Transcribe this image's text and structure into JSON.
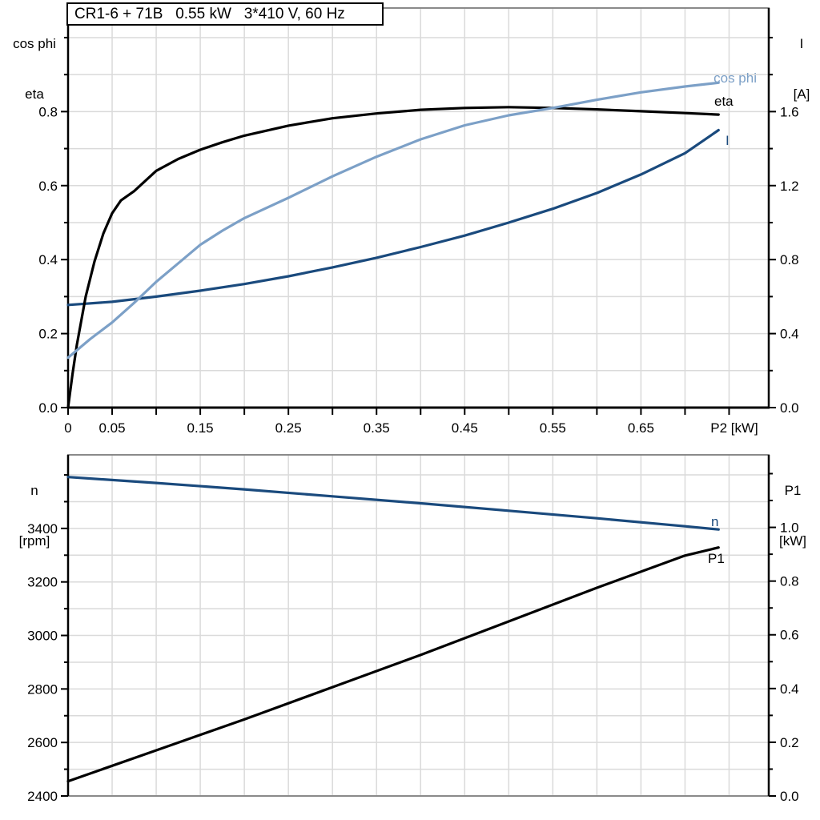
{
  "title": "CR1-6 + 71B   0.55 kW   3*410 V, 60 Hz",
  "colors": {
    "curve_black": "#000000",
    "light_blue": "#7CA0C7",
    "dark_blue": "#1A4A7D",
    "grid": "#DADADA",
    "frame": "#8A8A8A",
    "axis": "#000000",
    "bg": "#FFFFFF"
  },
  "corner_labels": {
    "top_left": {
      "line1": "cos phi",
      "line2": "eta"
    },
    "top_right": {
      "line1": "I",
      "line2": "[A]"
    },
    "bottom_left": {
      "line1": "n",
      "line2": "[rpm]"
    },
    "bottom_right": {
      "line1": "P1",
      "line2": "[kW]"
    }
  },
  "chart_data": [
    {
      "type": "line",
      "name": "motor-efficiency-current-chart",
      "x": {
        "label": "P2 [kW]",
        "range": [
          0,
          0.795
        ],
        "ticks": [
          {
            "v": 0,
            "t": "0"
          },
          {
            "v": 0.05,
            "t": "0.05"
          },
          {
            "v": 0.1,
            "t": ""
          },
          {
            "v": 0.15,
            "t": "0.15"
          },
          {
            "v": 0.2,
            "t": ""
          },
          {
            "v": 0.25,
            "t": "0.25"
          },
          {
            "v": 0.3,
            "t": ""
          },
          {
            "v": 0.35,
            "t": "0.35"
          },
          {
            "v": 0.4,
            "t": ""
          },
          {
            "v": 0.45,
            "t": "0.45"
          },
          {
            "v": 0.5,
            "t": ""
          },
          {
            "v": 0.55,
            "t": "0.55"
          },
          {
            "v": 0.6,
            "t": ""
          },
          {
            "v": 0.65,
            "t": "0.65"
          },
          {
            "v": 0.7,
            "t": ""
          },
          {
            "v": 0.75,
            "t": ""
          }
        ],
        "grid": [
          0.05,
          0.1,
          0.15,
          0.2,
          0.25,
          0.3,
          0.35,
          0.4,
          0.45,
          0.5,
          0.55,
          0.6,
          0.65,
          0.7,
          0.75
        ]
      },
      "left": {
        "range": [
          0,
          1.08
        ],
        "majors": [
          {
            "v": 0,
            "t": "0.0"
          },
          {
            "v": 0.2,
            "t": "0.2"
          },
          {
            "v": 0.4,
            "t": "0.4"
          },
          {
            "v": 0.6,
            "t": "0.6"
          },
          {
            "v": 0.8,
            "t": "0.8"
          }
        ],
        "minors": [
          0.1,
          0.3,
          0.5,
          0.7,
          0.9,
          1.0
        ],
        "grid": [
          0.1,
          0.2,
          0.3,
          0.4,
          0.5,
          0.6,
          0.7,
          0.8,
          0.9,
          1.0
        ]
      },
      "right": {
        "range": [
          0,
          2.16
        ],
        "majors": [
          {
            "v": 0,
            "t": "0.0"
          },
          {
            "v": 0.4,
            "t": "0.4"
          },
          {
            "v": 0.8,
            "t": "0.8"
          },
          {
            "v": 1.2,
            "t": "1.2"
          },
          {
            "v": 1.6,
            "t": "1.6"
          }
        ],
        "minors": [
          0.2,
          0.6,
          1.0,
          1.4,
          1.8,
          2.0
        ]
      },
      "series": [
        {
          "id": "i",
          "label": "I",
          "axis": "right",
          "color": "dark_blue",
          "points": [
            [
              0,
              0.555
            ],
            [
              0.05,
              0.572
            ],
            [
              0.1,
              0.6
            ],
            [
              0.15,
              0.632
            ],
            [
              0.2,
              0.668
            ],
            [
              0.25,
              0.71
            ],
            [
              0.3,
              0.758
            ],
            [
              0.35,
              0.81
            ],
            [
              0.4,
              0.868
            ],
            [
              0.45,
              0.93
            ],
            [
              0.5,
              1.0
            ],
            [
              0.55,
              1.075
            ],
            [
              0.6,
              1.16
            ],
            [
              0.65,
              1.26
            ],
            [
              0.7,
              1.375
            ],
            [
              0.738,
              1.5
            ]
          ]
        },
        {
          "id": "eta",
          "label": "eta",
          "axis": "left",
          "color": "curve_black",
          "points": [
            [
              0,
              0
            ],
            [
              0.005,
              0.09
            ],
            [
              0.01,
              0.17
            ],
            [
              0.02,
              0.3
            ],
            [
              0.03,
              0.395
            ],
            [
              0.04,
              0.47
            ],
            [
              0.05,
              0.525
            ],
            [
              0.06,
              0.56
            ],
            [
              0.075,
              0.585
            ],
            [
              0.1,
              0.64
            ],
            [
              0.125,
              0.672
            ],
            [
              0.15,
              0.697
            ],
            [
              0.175,
              0.717
            ],
            [
              0.2,
              0.735
            ],
            [
              0.25,
              0.762
            ],
            [
              0.3,
              0.782
            ],
            [
              0.35,
              0.795
            ],
            [
              0.4,
              0.805
            ],
            [
              0.45,
              0.81
            ],
            [
              0.5,
              0.812
            ],
            [
              0.55,
              0.81
            ],
            [
              0.6,
              0.806
            ],
            [
              0.65,
              0.801
            ],
            [
              0.7,
              0.796
            ],
            [
              0.738,
              0.792
            ]
          ]
        },
        {
          "id": "cos-phi",
          "label": "cos phi",
          "axis": "left",
          "color": "light_blue",
          "points": [
            [
              0,
              0.135
            ],
            [
              0.025,
              0.185
            ],
            [
              0.05,
              0.23
            ],
            [
              0.075,
              0.283
            ],
            [
              0.1,
              0.34
            ],
            [
              0.125,
              0.39
            ],
            [
              0.15,
              0.44
            ],
            [
              0.175,
              0.478
            ],
            [
              0.2,
              0.512
            ],
            [
              0.25,
              0.567
            ],
            [
              0.3,
              0.625
            ],
            [
              0.35,
              0.678
            ],
            [
              0.4,
              0.725
            ],
            [
              0.45,
              0.763
            ],
            [
              0.5,
              0.79
            ],
            [
              0.55,
              0.81
            ],
            [
              0.6,
              0.832
            ],
            [
              0.65,
              0.852
            ],
            [
              0.7,
              0.868
            ],
            [
              0.738,
              0.878
            ]
          ]
        }
      ]
    },
    {
      "type": "line",
      "name": "speed-input-power-chart",
      "x": {
        "label": "",
        "range": [
          0,
          0.795
        ],
        "ticks": [],
        "grid": [
          0.05,
          0.1,
          0.15,
          0.2,
          0.25,
          0.3,
          0.35,
          0.4,
          0.45,
          0.5,
          0.55,
          0.6,
          0.65,
          0.7,
          0.75
        ]
      },
      "left": {
        "range": [
          2400,
          3675
        ],
        "majors": [
          {
            "v": 2400,
            "t": "2400"
          },
          {
            "v": 2600,
            "t": "2600"
          },
          {
            "v": 2800,
            "t": "2800"
          },
          {
            "v": 3000,
            "t": "3000"
          },
          {
            "v": 3200,
            "t": "3200"
          },
          {
            "v": 3400,
            "t": "3400"
          }
        ],
        "minors": [
          2500,
          2700,
          2900,
          3100,
          3300,
          3500,
          3600
        ],
        "grid": [
          2500,
          2600,
          2700,
          2800,
          2900,
          3000,
          3100,
          3200,
          3300,
          3400,
          3500,
          3600
        ]
      },
      "right": {
        "range": [
          0,
          1.27
        ],
        "majors": [
          {
            "v": 0,
            "t": "0.0"
          },
          {
            "v": 0.2,
            "t": "0.2"
          },
          {
            "v": 0.4,
            "t": "0.4"
          },
          {
            "v": 0.6,
            "t": "0.6"
          },
          {
            "v": 0.8,
            "t": "0.8"
          },
          {
            "v": 1.0,
            "t": "1.0"
          }
        ],
        "minors": [
          0.1,
          0.3,
          0.5,
          0.7,
          0.9,
          1.1,
          1.2
        ]
      },
      "series": [
        {
          "id": "n",
          "label": "n",
          "axis": "left",
          "color": "dark_blue",
          "points": [
            [
              0,
              3592
            ],
            [
              0.1,
              3570
            ],
            [
              0.2,
              3546
            ],
            [
              0.3,
              3520
            ],
            [
              0.4,
              3494
            ],
            [
              0.5,
              3466
            ],
            [
              0.6,
              3438
            ],
            [
              0.7,
              3408
            ],
            [
              0.738,
              3396
            ]
          ]
        },
        {
          "id": "p1",
          "label": "P1",
          "axis": "right",
          "color": "curve_black",
          "points": [
            [
              0,
              0.055
            ],
            [
              0.1,
              0.17
            ],
            [
              0.2,
              0.285
            ],
            [
              0.3,
              0.405
            ],
            [
              0.4,
              0.525
            ],
            [
              0.5,
              0.65
            ],
            [
              0.6,
              0.775
            ],
            [
              0.7,
              0.895
            ],
            [
              0.738,
              0.925
            ]
          ]
        }
      ]
    }
  ]
}
